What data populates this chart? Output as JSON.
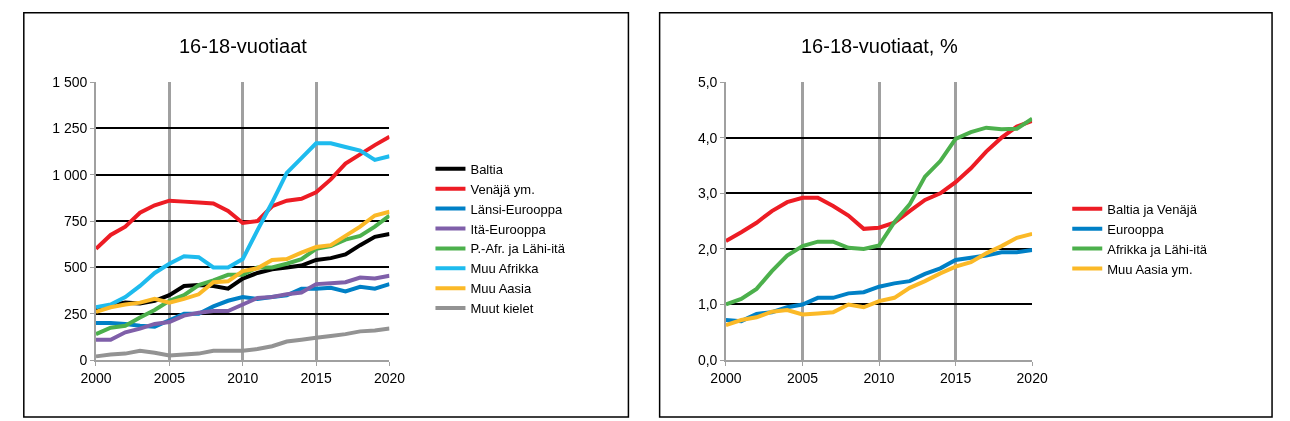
{
  "chart_data": [
    {
      "type": "line",
      "title": "16-18-vuotiaat",
      "x": [
        2000,
        2001,
        2002,
        2003,
        2004,
        2005,
        2006,
        2007,
        2008,
        2009,
        2010,
        2011,
        2012,
        2013,
        2014,
        2015,
        2016,
        2017,
        2018,
        2019,
        2020
      ],
      "xlim": [
        2000,
        2020
      ],
      "xticks": [
        2000,
        2005,
        2010,
        2015,
        2020
      ],
      "ylim": [
        0,
        1500
      ],
      "yticks": [
        0,
        250,
        500,
        750,
        {
          "value": 1000,
          "label": "1 000"
        },
        {
          "value": 1250,
          "label": "1 250"
        },
        {
          "value": 1500,
          "label": "1 500"
        }
      ],
      "grid": true,
      "legend": "right",
      "marker": "none",
      "line_style": "solid",
      "series": [
        {
          "name": "Baltia",
          "color": "#000000",
          "values": [
            275,
            295,
            310,
            305,
            320,
            350,
            400,
            405,
            400,
            385,
            440,
            470,
            490,
            500,
            510,
            540,
            550,
            570,
            620,
            665,
            680
          ]
        },
        {
          "name": "Venäjä ym.",
          "color": "#ed1c24",
          "values": [
            600,
            675,
            720,
            795,
            835,
            860,
            855,
            850,
            845,
            805,
            740,
            750,
            830,
            860,
            870,
            905,
            975,
            1060,
            1110,
            1160,
            1205
          ]
        },
        {
          "name": "Länsi-Eurooppa",
          "color": "#0080c6",
          "values": [
            200,
            200,
            195,
            185,
            180,
            215,
            250,
            250,
            290,
            320,
            340,
            330,
            340,
            350,
            385,
            385,
            390,
            370,
            395,
            385,
            410
          ]
        },
        {
          "name": "Itä-Eurooppa",
          "color": "#7f5fa9",
          "values": [
            110,
            110,
            150,
            170,
            195,
            205,
            240,
            255,
            265,
            265,
            300,
            335,
            340,
            355,
            365,
            410,
            415,
            420,
            445,
            440,
            455
          ]
        },
        {
          "name": "P.-Afr. ja Lähi-itä",
          "color": "#4cb04c",
          "values": [
            140,
            175,
            185,
            230,
            270,
            320,
            350,
            405,
            430,
            460,
            460,
            500,
            500,
            520,
            545,
            600,
            615,
            650,
            670,
            720,
            780
          ]
        },
        {
          "name": "Muu Afrikka",
          "color": "#1ebbee",
          "values": [
            285,
            300,
            340,
            400,
            470,
            520,
            560,
            555,
            500,
            500,
            545,
            700,
            850,
            1010,
            1090,
            1170,
            1170,
            1150,
            1130,
            1080,
            1100
          ]
        },
        {
          "name": "Muu Aasia",
          "color": "#fbb927",
          "values": [
            260,
            285,
            300,
            310,
            330,
            310,
            330,
            355,
            420,
            425,
            480,
            495,
            540,
            545,
            580,
            610,
            620,
            670,
            720,
            780,
            800
          ]
        },
        {
          "name": "Muut kielet",
          "color": "#939393",
          "values": [
            20,
            30,
            35,
            50,
            40,
            25,
            30,
            35,
            50,
            50,
            50,
            60,
            75,
            100,
            110,
            120,
            130,
            140,
            155,
            160,
            170
          ]
        }
      ]
    },
    {
      "type": "line",
      "title": "16-18-vuotiaat, %",
      "x": [
        2000,
        2001,
        2002,
        2003,
        2004,
        2005,
        2006,
        2007,
        2008,
        2009,
        2010,
        2011,
        2012,
        2013,
        2014,
        2015,
        2016,
        2017,
        2018,
        2019,
        2020
      ],
      "xlim": [
        2000,
        2020
      ],
      "xticks": [
        2000,
        2005,
        2010,
        2015,
        2020
      ],
      "ylim": [
        0,
        5
      ],
      "yticks": [
        {
          "value": 0,
          "label": "0,0"
        },
        {
          "value": 1,
          "label": "1,0"
        },
        {
          "value": 2,
          "label": "2,0"
        },
        {
          "value": 3,
          "label": "3,0"
        },
        {
          "value": 4,
          "label": "4,0"
        },
        {
          "value": 5,
          "label": "5,0"
        }
      ],
      "grid": true,
      "legend": "right",
      "marker": "none",
      "line_style": "solid",
      "series": [
        {
          "name": "Baltia ja Venäjä",
          "color": "#ed1c24",
          "values": [
            2.14,
            2.3,
            2.47,
            2.68,
            2.84,
            2.92,
            2.92,
            2.77,
            2.6,
            2.36,
            2.38,
            2.47,
            2.68,
            2.88,
            3.0,
            3.2,
            3.45,
            3.75,
            4.0,
            4.2,
            4.3
          ]
        },
        {
          "name": "Eurooppa",
          "color": "#0080c6",
          "values": [
            0.72,
            0.7,
            0.83,
            0.86,
            0.95,
            1.0,
            1.12,
            1.12,
            1.2,
            1.22,
            1.32,
            1.38,
            1.42,
            1.55,
            1.65,
            1.8,
            1.84,
            1.88,
            1.94,
            1.94,
            1.98
          ]
        },
        {
          "name": "Afrikka ja Lähi-itä",
          "color": "#4cb04c",
          "values": [
            1.0,
            1.1,
            1.28,
            1.6,
            1.88,
            2.05,
            2.13,
            2.13,
            2.02,
            2.0,
            2.06,
            2.48,
            2.8,
            3.3,
            3.58,
            3.98,
            4.1,
            4.18,
            4.15,
            4.16,
            4.34
          ]
        },
        {
          "name": "Muu Aasia ym.",
          "color": "#fbb927",
          "values": [
            0.63,
            0.72,
            0.77,
            0.87,
            0.9,
            0.82,
            0.84,
            0.86,
            1.0,
            0.95,
            1.06,
            1.12,
            1.3,
            1.42,
            1.56,
            1.68,
            1.76,
            1.92,
            2.05,
            2.2,
            2.27
          ]
        }
      ]
    }
  ]
}
